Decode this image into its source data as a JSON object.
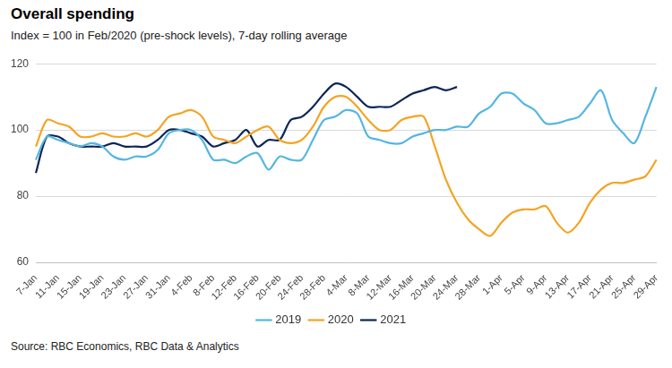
{
  "chart_data": {
    "type": "line",
    "title": "Overall spending",
    "subtitle": "Index = 100 in Feb/2020 (pre-shock levels), 7-day rolling average",
    "source": "Source: RBC Economics, RBC Data & Analytics",
    "categories": [
      "7-Jan",
      null,
      "11-Jan",
      null,
      "15-Jan",
      null,
      "19-Jan",
      null,
      "23-Jan",
      null,
      "27-Jan",
      null,
      "31-Jan",
      null,
      "4-Feb",
      null,
      "8-Feb",
      null,
      "12-Feb",
      null,
      "16-Feb",
      null,
      "20-Feb",
      null,
      "24-Feb",
      null,
      "28-Feb",
      null,
      "4-Mar",
      null,
      "8-Mar",
      null,
      "12-Mar",
      null,
      "16-Mar",
      null,
      "20-Mar",
      null,
      "24-Mar",
      null,
      "28-Mar",
      null,
      "1-Apr",
      null,
      "5-Apr",
      null,
      "9-Apr",
      null,
      "13-Apr",
      null,
      "17-Apr",
      null,
      "21-Apr",
      null,
      "25-Apr",
      null,
      "29-Apr"
    ],
    "series": [
      {
        "name": "2019",
        "color": "#55b6e2",
        "values": [
          91,
          98,
          97,
          96,
          95,
          96,
          95,
          92,
          91,
          92,
          92,
          94,
          99,
          100,
          100,
          97,
          91,
          91,
          90,
          92,
          93,
          88,
          92,
          91,
          91,
          97,
          103,
          104,
          106,
          105,
          98,
          97,
          96,
          96,
          98,
          99,
          100,
          100,
          101,
          101,
          105,
          107,
          111,
          111,
          108,
          106,
          102,
          102,
          103,
          104,
          108,
          112,
          103,
          99,
          96,
          104,
          113
        ]
      },
      {
        "name": "2020",
        "color": "#f4a422",
        "values": [
          95,
          103,
          102,
          101,
          98,
          98,
          99,
          98,
          98,
          99,
          98,
          100,
          104,
          105,
          106,
          104,
          98,
          97,
          96,
          98,
          100,
          101,
          97,
          96,
          97,
          101,
          107,
          110,
          110,
          107,
          103,
          100,
          100,
          103,
          104,
          104,
          95,
          85,
          78,
          73,
          70,
          68,
          72,
          75,
          76,
          76,
          77,
          72,
          69,
          72,
          78,
          82,
          84,
          84,
          85,
          86,
          91
        ]
      },
      {
        "name": "2021",
        "color": "#0c2557",
        "values": [
          87,
          98,
          98,
          96,
          95,
          95,
          95,
          96,
          95,
          95,
          95,
          97,
          100,
          100,
          99,
          98,
          95,
          96,
          97,
          100,
          95,
          97,
          97,
          103,
          104,
          107,
          111,
          114,
          113,
          110,
          107,
          107,
          107,
          109,
          111,
          112,
          113,
          112,
          113,
          null,
          null,
          null,
          null,
          null,
          null,
          null,
          null,
          null,
          null,
          null,
          null,
          null,
          null,
          null,
          null,
          null,
          null
        ]
      }
    ],
    "ylim": [
      60,
      120
    ],
    "yticks": [
      60,
      80,
      100,
      120
    ],
    "grid": true,
    "legend": "bottom"
  }
}
